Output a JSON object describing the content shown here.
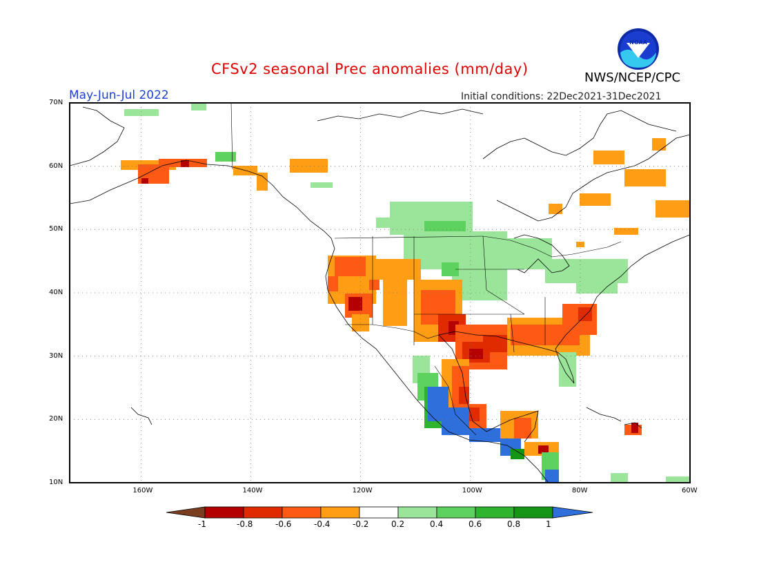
{
  "header": {
    "title": "CFSv2 seasonal Prec anomalies (mm/day)",
    "season": "May-Jun-Jul 2022",
    "initial_conditions": "Initial conditions: 22Dec2021-31Dec2021",
    "agency": "NWS/NCEP/CPC",
    "logo_text": "NOAA"
  },
  "map": {
    "lon_range": [
      -173,
      -60
    ],
    "lat_range": [
      10,
      70
    ],
    "lat_ticks": [
      "70N",
      "60N",
      "50N",
      "40N",
      "30N",
      "20N",
      "10N"
    ],
    "lon_ticks": [
      "160W",
      "140W",
      "120W",
      "100W",
      "80W",
      "60W"
    ],
    "grid": "dotted"
  },
  "colorbar": {
    "labels": [
      "-1",
      "-0.8",
      "-0.6",
      "-0.4",
      "-0.2",
      "0.2",
      "0.4",
      "0.6",
      "0.8",
      "1"
    ],
    "colors": [
      "#7a3e1e",
      "#b40000",
      "#e02a00",
      "#ff5a14",
      "#ff9e14",
      "#ffffff",
      "#9ae59a",
      "#5ed25e",
      "#2fb42f",
      "#149614",
      "#2e6fdc"
    ]
  },
  "anomaly_regions": [
    {
      "region": "Alaska south coast",
      "sign": "dry"
    },
    {
      "region": "Great Basin / California",
      "sign": "dry"
    },
    {
      "region": "Southern Plains / Texas",
      "sign": "dry"
    },
    {
      "region": "Southeast US / Carolinas",
      "sign": "dry"
    },
    {
      "region": "Gulf coast Mexico",
      "sign": "dry"
    },
    {
      "region": "Northern Plains / Upper Midwest",
      "sign": "wet"
    },
    {
      "region": "Great Lakes / New England",
      "sign": "wet"
    },
    {
      "region": "Pacific coast of Mexico",
      "sign": "wet"
    },
    {
      "region": "Eastern Canada",
      "sign": "dry"
    }
  ]
}
